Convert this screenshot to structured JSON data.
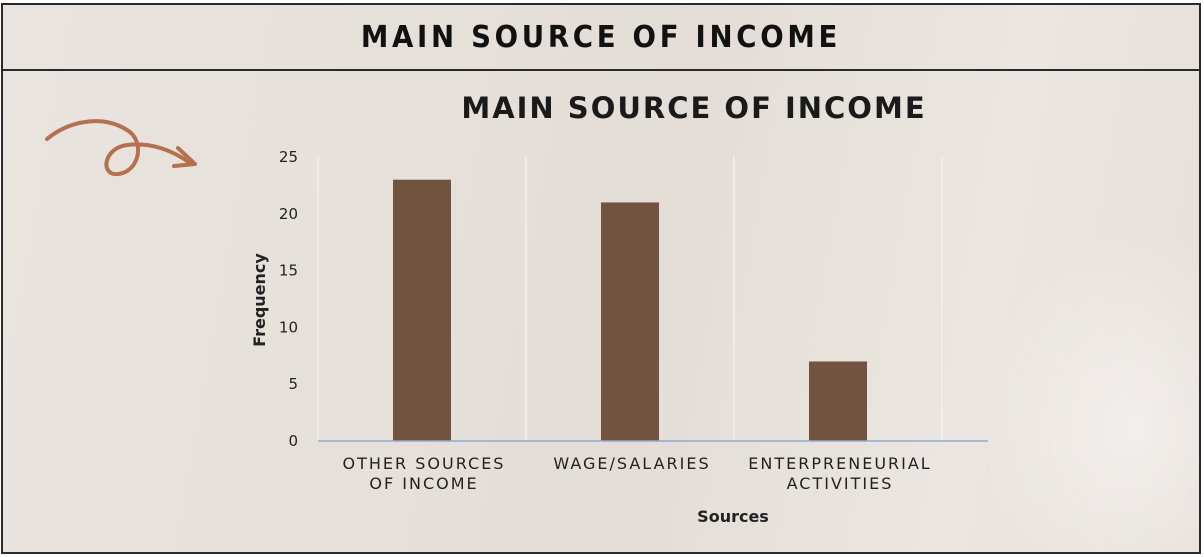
{
  "header": {
    "title": "MAIN SOURCE OF INCOME"
  },
  "colors": {
    "bar": "#72533f",
    "axis": "#8fa9d6",
    "grid": "#f3f0ec",
    "arrow": "#b5704e"
  },
  "icons": {
    "decoration": "curly-arrow-icon"
  },
  "chart_data": {
    "type": "bar",
    "title": "MAIN SOURCE OF INCOME",
    "xlabel": "Sources",
    "ylabel": "Frequency",
    "categories": [
      [
        "OTHER SOURCES",
        "OF INCOME"
      ],
      [
        "WAGE/SALARIES"
      ],
      [
        "ENTERPRENEURIAL",
        "ACTIVITIES"
      ]
    ],
    "values": [
      23,
      21,
      7
    ],
    "ylim": [
      0,
      25
    ],
    "yticks": [
      0,
      5,
      10,
      15,
      20,
      25
    ],
    "grid": "vertical separators",
    "legend": "none"
  }
}
